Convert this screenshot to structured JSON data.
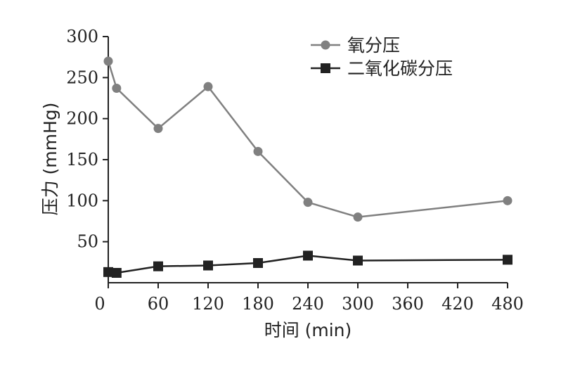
{
  "chart_data": {
    "type": "line",
    "xlabel": "时间 (min)",
    "ylabel": "压力 (mmHg)",
    "xlim": [
      0,
      480
    ],
    "ylim": [
      0,
      300
    ],
    "xticks": [
      0,
      60,
      120,
      180,
      240,
      300,
      360,
      420,
      480
    ],
    "xtick_labels": [
      "0",
      "60",
      "120",
      "180",
      "240",
      "300",
      "360",
      "420",
      "480"
    ],
    "yticks": [
      50,
      100,
      150,
      200,
      250,
      300
    ],
    "ytick_labels": [
      "50",
      "100",
      "150",
      "200",
      "250",
      "300"
    ],
    "grid": false,
    "legend_position": "top-right",
    "series": [
      {
        "name": "氧分压",
        "color": "#808080",
        "marker": "circle",
        "x": [
          0,
          10,
          60,
          120,
          180,
          240,
          300,
          480
        ],
        "y": [
          270,
          237,
          188,
          239,
          160,
          98,
          80,
          100
        ]
      },
      {
        "name": "二氧化碳分压",
        "color": "#222222",
        "marker": "square",
        "x": [
          0,
          10,
          60,
          120,
          180,
          240,
          300,
          480
        ],
        "y": [
          13,
          12,
          20,
          21,
          24,
          33,
          27,
          28
        ]
      }
    ]
  }
}
